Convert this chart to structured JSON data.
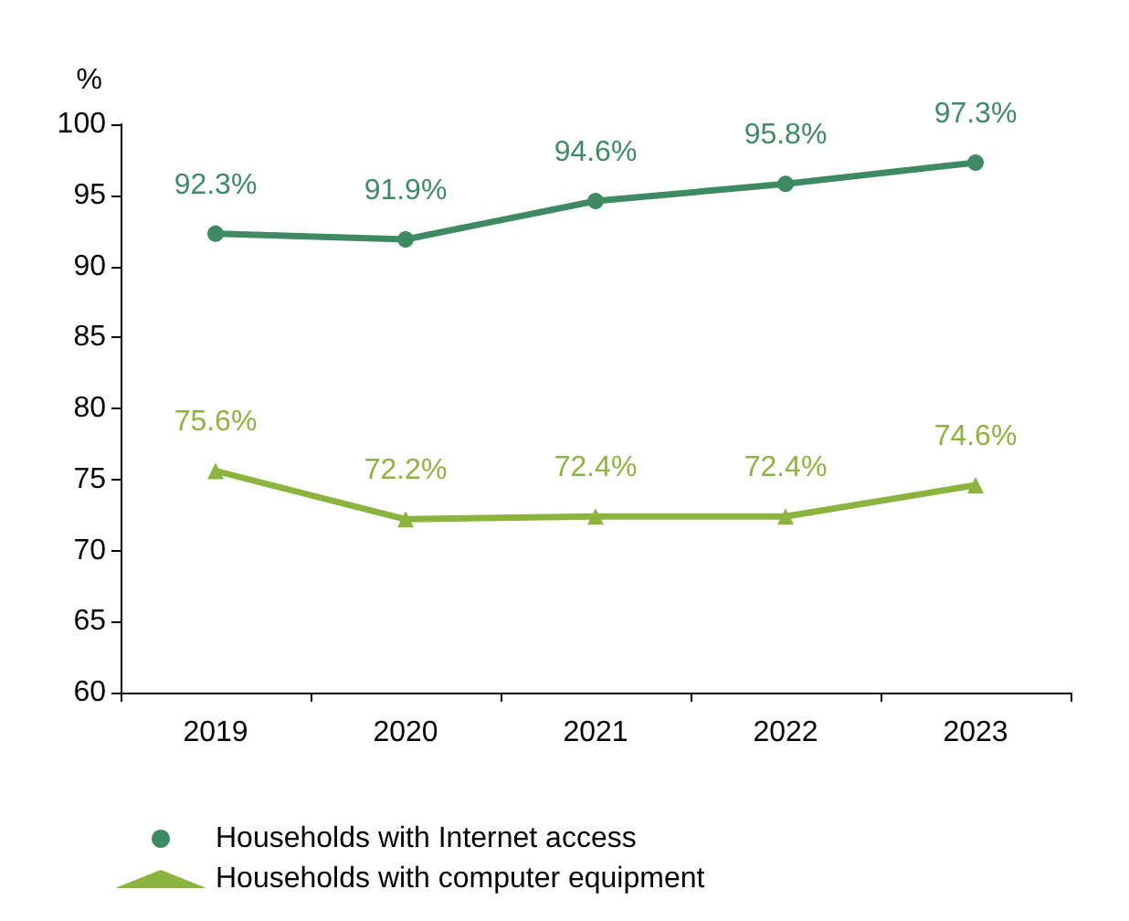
{
  "chart_data": {
    "type": "line",
    "ylabel": "%",
    "categories": [
      "2019",
      "2020",
      "2021",
      "2022",
      "2023"
    ],
    "series": [
      {
        "name": "Households with Internet access",
        "color": "#3e8a63",
        "marker": "circle",
        "values": [
          92.3,
          91.9,
          94.6,
          95.8,
          97.3
        ],
        "value_labels": [
          "92.3%",
          "91.9%",
          "94.6%",
          "95.8%",
          "97.3%"
        ]
      },
      {
        "name": "Households with computer equipment",
        "color": "#8db33f",
        "marker": "triangle",
        "values": [
          75.6,
          72.2,
          72.4,
          72.4,
          74.6
        ],
        "value_labels": [
          "75.6%",
          "72.2%",
          "72.4%",
          "72.4%",
          "74.6%"
        ]
      }
    ],
    "ylim": [
      60,
      100
    ],
    "yticks": [
      60,
      65,
      70,
      75,
      80,
      85,
      90,
      95,
      100
    ],
    "grid": false,
    "legend": "bottom left",
    "line_style": "solid"
  }
}
